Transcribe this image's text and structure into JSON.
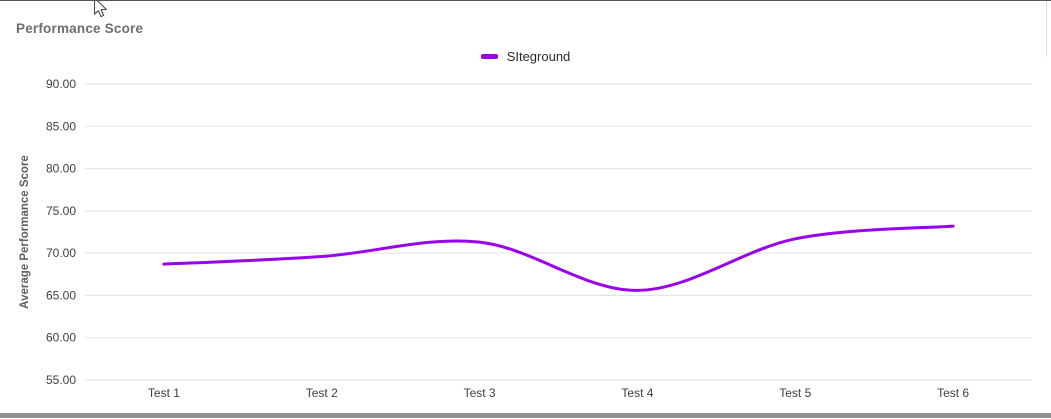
{
  "chart_data": {
    "type": "line",
    "title": "Performance Score",
    "categories": [
      "Test 1",
      "Test 2",
      "Test 3",
      "Test 4",
      "Test 5",
      "Test 6"
    ],
    "series": [
      {
        "name": "SIteground",
        "color": "#9903ec",
        "values": [
          68.7,
          69.6,
          71.3,
          65.6,
          71.7,
          73.2
        ]
      }
    ],
    "xlabel": "",
    "ylabel": "Average Performance Score",
    "ylim": [
      55,
      90
    ],
    "ytick_values": [
      90,
      85,
      80,
      75,
      70,
      65,
      60,
      55
    ],
    "ytick_labels": [
      "90.00",
      "85.00",
      "80.00",
      "75.00",
      "70.00",
      "65.00",
      "60.00",
      "55.00"
    ],
    "grid": true,
    "curve": "smooth",
    "legend_position": "top-center"
  },
  "colors": {
    "accent_line": "#9903ec",
    "gridline": "#e0e0e0",
    "tick_text": "#3f3f3f",
    "title_text": "#6e6e6e",
    "axis_title_text": "#5f5f5f",
    "legend_text": "#2b2b2b",
    "top_border": "#54545a",
    "bottom_bar": "#8f9194"
  }
}
